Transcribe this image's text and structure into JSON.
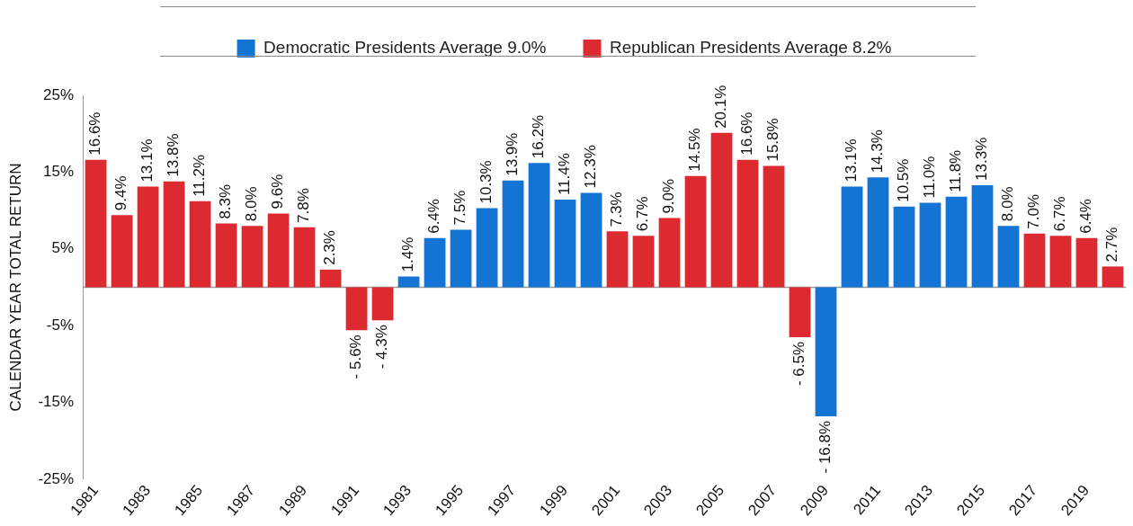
{
  "chart_data": {
    "type": "bar",
    "ylabel": "CALENDAR YEAR TOTAL RETURN",
    "categories": [
      "1981",
      null,
      "1983",
      null,
      "1985",
      null,
      "1987",
      null,
      "1989",
      null,
      "1991",
      null,
      "1993",
      null,
      "1995",
      null,
      "1997",
      null,
      "1999",
      null,
      "2001",
      null,
      "2003",
      null,
      "2005",
      null,
      "2007",
      null,
      "2009",
      null,
      "2011",
      null,
      "2013",
      null,
      "2015",
      null,
      "2017",
      null,
      "2019",
      null
    ],
    "series": [
      {
        "name": "Democratic Presidents Average 9.0%",
        "color": "#1474d4",
        "values": [
          null,
          null,
          null,
          null,
          null,
          null,
          null,
          null,
          null,
          null,
          null,
          null,
          1.4,
          6.4,
          7.5,
          10.3,
          13.9,
          16.2,
          11.4,
          12.3,
          null,
          null,
          null,
          null,
          null,
          null,
          null,
          null,
          -16.8,
          13.1,
          14.3,
          10.5,
          11.0,
          11.8,
          13.3,
          8.0,
          null,
          null,
          null,
          null
        ],
        "value_labels": [
          null,
          null,
          null,
          null,
          null,
          null,
          null,
          null,
          null,
          null,
          null,
          null,
          "1.4%",
          "6.4%",
          "7.5%",
          "10.3%",
          "13.9%",
          "16.2%",
          "11.4%",
          "12.3%",
          null,
          null,
          null,
          null,
          null,
          null,
          null,
          null,
          "- 16.8%",
          "13.1%",
          "14.3%",
          "10.5%",
          "11.0%",
          "11.8%",
          "13.3%",
          "8.0%",
          null,
          null,
          null,
          null
        ]
      },
      {
        "name": "Republican Presidents Average 8.2%",
        "color": "#dd2a30",
        "values": [
          16.6,
          9.4,
          13.1,
          13.8,
          11.2,
          8.3,
          8.0,
          9.6,
          7.8,
          2.3,
          -5.6,
          -4.3,
          null,
          null,
          null,
          null,
          null,
          null,
          null,
          null,
          7.3,
          6.7,
          9.0,
          14.5,
          20.1,
          16.6,
          15.8,
          -6.5,
          null,
          null,
          null,
          null,
          null,
          null,
          null,
          null,
          7.0,
          6.7,
          6.4,
          2.7
        ],
        "value_labels": [
          "16.6%",
          "9.4%",
          "13.1%",
          "13.8%",
          "11.2%",
          "8.3%",
          "8.0%",
          "9.6%",
          "7.8%",
          "2.3%",
          "- 5.6%",
          "- 4.3%",
          null,
          null,
          null,
          null,
          null,
          null,
          null,
          null,
          "7.3%",
          "6.7%",
          "9.0%",
          "14.5%",
          "20.1%",
          "16.6%",
          "15.8%",
          "- 6.5%",
          null,
          null,
          null,
          null,
          null,
          null,
          null,
          null,
          "7.0%",
          "6.7%",
          "6.4%",
          "2.7%"
        ]
      }
    ],
    "ylim": [
      -25,
      25
    ],
    "yticks": [
      {
        "value": -25,
        "label": "-25%"
      },
      {
        "value": -15,
        "label": "-15%"
      },
      {
        "value": -5,
        "label": "-5%"
      },
      {
        "value": 5,
        "label": "5%"
      },
      {
        "value": 15,
        "label": "15%"
      },
      {
        "value": 25,
        "label": "25%"
      }
    ],
    "ref_lines": [
      {
        "axis": "y",
        "value": 0,
        "color": "#999999"
      }
    ],
    "grid": false,
    "legend": "top"
  }
}
